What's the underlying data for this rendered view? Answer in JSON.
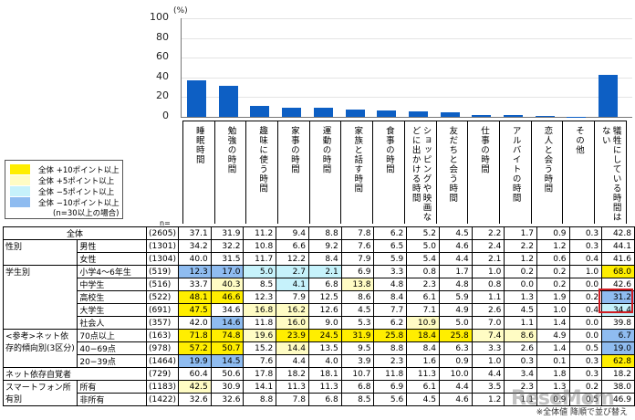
{
  "chart_data": {
    "type": "bar",
    "title": "",
    "ylabel": "(%)",
    "xlabel": "",
    "ylim": [
      0,
      100
    ],
    "yticks": [
      0,
      20,
      40,
      60,
      80,
      100
    ],
    "grid": true,
    "categories": [
      "睡眠時間",
      "勉強の時間",
      "趣味に使う時間",
      "家事の時間",
      "運動の時間",
      "家族と話す時間",
      "食事の時間",
      "ショッピングや映画などに出かける時間",
      "友だちと会う時間",
      "仕事の時間",
      "アルバイトの時間",
      "恋人と会う時間",
      "その他",
      "犠牲にしている時間はない"
    ],
    "values": [
      37.1,
      31.9,
      11.2,
      9.4,
      8.8,
      7.8,
      6.2,
      5.2,
      4.5,
      2.2,
      1.7,
      0.9,
      0.3,
      42.8
    ],
    "color": "#0d5fc4"
  },
  "axis": {
    "unit": "(%)",
    "ticks": [
      "100",
      "80",
      "60",
      "40",
      "20",
      "0"
    ]
  },
  "columns": [
    "睡眠時間",
    "勉強の時間",
    "趣味に使う時間",
    "家事の時間",
    "運動の時間",
    "家族と話す時間",
    "食事の時間",
    "ショッピングや映画などに出かける時間",
    "友だちと会う時間",
    "仕事の時間",
    "アルバイトの時間",
    "恋人と会う時間",
    "その他",
    "犠牲にしている時間はない"
  ],
  "legend": {
    "items": [
      {
        "label": "全体 +10ポイント以上",
        "color": "#ffee00"
      },
      {
        "label": "全体  +5ポイント以上",
        "color": "#fffcc4"
      },
      {
        "label": "全体  −5ポイント以上",
        "color": "#c6f2fb"
      },
      {
        "label": "全体 −10ポイント以上",
        "color": "#8fbcf0"
      }
    ],
    "note": "(n=30以上の場合)"
  },
  "n_header": "n=",
  "groups": {
    "total": "全体",
    "gender": "性別",
    "student": "学生別",
    "net": "<参考>ネット依存的傾向別(3区分)",
    "net_aware": "ネット依存自覚者",
    "smartphone": "スマートフォン所有別"
  },
  "rows": [
    {
      "label": "全体",
      "n": "(2605)",
      "values": [
        "37.1",
        "31.9",
        "11.2",
        "9.4",
        "8.8",
        "7.8",
        "6.2",
        "5.2",
        "4.5",
        "2.2",
        "1.7",
        "0.9",
        "0.3",
        "42.8"
      ],
      "hl": [
        "",
        "",
        "",
        "",
        "",
        "",
        "",
        "",
        "",
        "",
        "",
        "",
        "",
        ""
      ]
    },
    {
      "label": "男性",
      "n": "(1301)",
      "values": [
        "34.2",
        "32.2",
        "10.8",
        "6.6",
        "9.2",
        "7.6",
        "6.5",
        "5.0",
        "4.6",
        "2.4",
        "2.2",
        "1.2",
        "0.3",
        "44.1"
      ],
      "hl": [
        "",
        "",
        "",
        "",
        "",
        "",
        "",
        "",
        "",
        "",
        "",
        "",
        "",
        ""
      ]
    },
    {
      "label": "女性",
      "n": "(1304)",
      "values": [
        "40.0",
        "31.5",
        "11.7",
        "12.2",
        "8.4",
        "7.9",
        "5.9",
        "5.4",
        "4.4",
        "2.1",
        "1.2",
        "0.6",
        "0.4",
        "41.6"
      ],
      "hl": [
        "",
        "",
        "",
        "",
        "",
        "",
        "",
        "",
        "",
        "",
        "",
        "",
        "",
        ""
      ]
    },
    {
      "label": "小学4〜6年生",
      "n": "(519)",
      "values": [
        "12.3",
        "17.0",
        "5.0",
        "2.7",
        "2.1",
        "6.9",
        "3.3",
        "0.8",
        "1.7",
        "1.0",
        "0.2",
        "0.2",
        "1.0",
        "68.0"
      ],
      "hl": [
        "db",
        "db",
        "lb",
        "lb",
        "lb",
        "",
        "",
        "",
        "",
        "",
        "",
        "",
        "",
        "hy"
      ]
    },
    {
      "label": "中学生",
      "n": "(516)",
      "values": [
        "33.7",
        "40.3",
        "8.5",
        "4.1",
        "6.8",
        "13.8",
        "4.8",
        "2.3",
        "4.8",
        "0.8",
        "0.0",
        "0.2",
        "0.0",
        "42.6"
      ],
      "hl": [
        "",
        "ly",
        "",
        "lb",
        "",
        "ly",
        "",
        "",
        "",
        "",
        "",
        "",
        "",
        ""
      ]
    },
    {
      "label": "高校生",
      "n": "(522)",
      "values": [
        "48.1",
        "46.6",
        "12.3",
        "7.9",
        "12.5",
        "8.6",
        "8.4",
        "6.1",
        "5.9",
        "1.1",
        "1.3",
        "1.9",
        "0.2",
        "31.2"
      ],
      "hl": [
        "hy",
        "hy",
        "",
        "",
        "",
        "",
        "",
        "",
        "",
        "",
        "",
        "",
        "",
        "db"
      ]
    },
    {
      "label": "大学生",
      "n": "(691)",
      "values": [
        "47.5",
        "34.6",
        "16.8",
        "16.2",
        "12.6",
        "4.5",
        "7.7",
        "7.1",
        "4.9",
        "2.6",
        "4.5",
        "1.0",
        "0.4",
        "34.4"
      ],
      "hl": [
        "hy",
        "",
        "ly",
        "ly",
        "",
        "",
        "",
        "",
        "",
        "",
        "",
        "",
        "",
        "lb"
      ]
    },
    {
      "label": "社会人",
      "n": "(357)",
      "values": [
        "42.0",
        "14.6",
        "11.8",
        "16.0",
        "9.0",
        "5.3",
        "6.2",
        "10.9",
        "5.0",
        "7.0",
        "1.1",
        "1.4",
        "0.0",
        "39.8"
      ],
      "hl": [
        "",
        "db",
        "",
        "ly",
        "",
        "",
        "",
        "ly",
        "",
        "",
        "",
        "",
        "",
        ""
      ]
    },
    {
      "label": "70点以上",
      "n": "(163)",
      "values": [
        "71.8",
        "74.8",
        "19.6",
        "23.9",
        "24.5",
        "31.9",
        "25.8",
        "18.4",
        "25.8",
        "7.4",
        "8.6",
        "4.9",
        "0.0",
        "6.7"
      ],
      "hl": [
        "hy",
        "hy",
        "ly",
        "hy",
        "hy",
        "hy",
        "hy",
        "hy",
        "hy",
        "ly",
        "ly",
        "",
        "",
        "db"
      ]
    },
    {
      "label": "40−69点",
      "n": "(978)",
      "values": [
        "57.2",
        "50.7",
        "15.2",
        "14.4",
        "13.5",
        "9.5",
        "8.8",
        "8.4",
        "6.3",
        "3.3",
        "2.6",
        "1.4",
        "0.5",
        "19.0"
      ],
      "hl": [
        "hy",
        "hy",
        "",
        "ly",
        "",
        "",
        "",
        "",
        "",
        "",
        "",
        "",
        "",
        "db"
      ]
    },
    {
      "label": "20−39点",
      "n": "(1464)",
      "values": [
        "19.9",
        "14.5",
        "7.6",
        "4.4",
        "4.0",
        "3.9",
        "2.3",
        "1.6",
        "0.9",
        "1.0",
        "0.3",
        "0.1",
        "0.3",
        "62.8"
      ],
      "hl": [
        "db",
        "db",
        "",
        "",
        "",
        "",
        "",
        "",
        "",
        "",
        "",
        "",
        "",
        "hy"
      ]
    },
    {
      "label": "ネット依存自覚者",
      "n": "(729)",
      "values": [
        "60.4",
        "50.6",
        "17.8",
        "18.2",
        "18.1",
        "10.7",
        "11.8",
        "11.3",
        "10.0",
        "4.4",
        "3.4",
        "1.8",
        "0.3",
        "18.2"
      ],
      "hl": [
        "",
        "",
        "",
        "",
        "",
        "",
        "",
        "",
        "",
        "",
        "",
        "",
        "",
        ""
      ]
    },
    {
      "label": "所有",
      "n": "(1183)",
      "values": [
        "42.5",
        "30.9",
        "14.1",
        "11.3",
        "11.3",
        "6.8",
        "6.9",
        "6.1",
        "4.4",
        "3.5",
        "2.3",
        "1.3",
        "0.2",
        "38.0"
      ],
      "hl": [
        "ly",
        "",
        "",
        "",
        "",
        "",
        "",
        "",
        "",
        "",
        "",
        "",
        "",
        ""
      ]
    },
    {
      "label": "非所有",
      "n": "(1422)",
      "values": [
        "32.6",
        "32.6",
        "8.8",
        "7.8",
        "6.8",
        "8.5",
        "5.6",
        "4.5",
        "4.6",
        "1.2",
        "1.1",
        "0.9",
        "0.5",
        "46.9"
      ],
      "hl": [
        "",
        "",
        "",
        "",
        "",
        "",
        "",
        "",
        "",
        "",
        "",
        "",
        "",
        ""
      ]
    }
  ],
  "footnote": "※全体値 降順で並び替え",
  "watermark": "ReseMom"
}
